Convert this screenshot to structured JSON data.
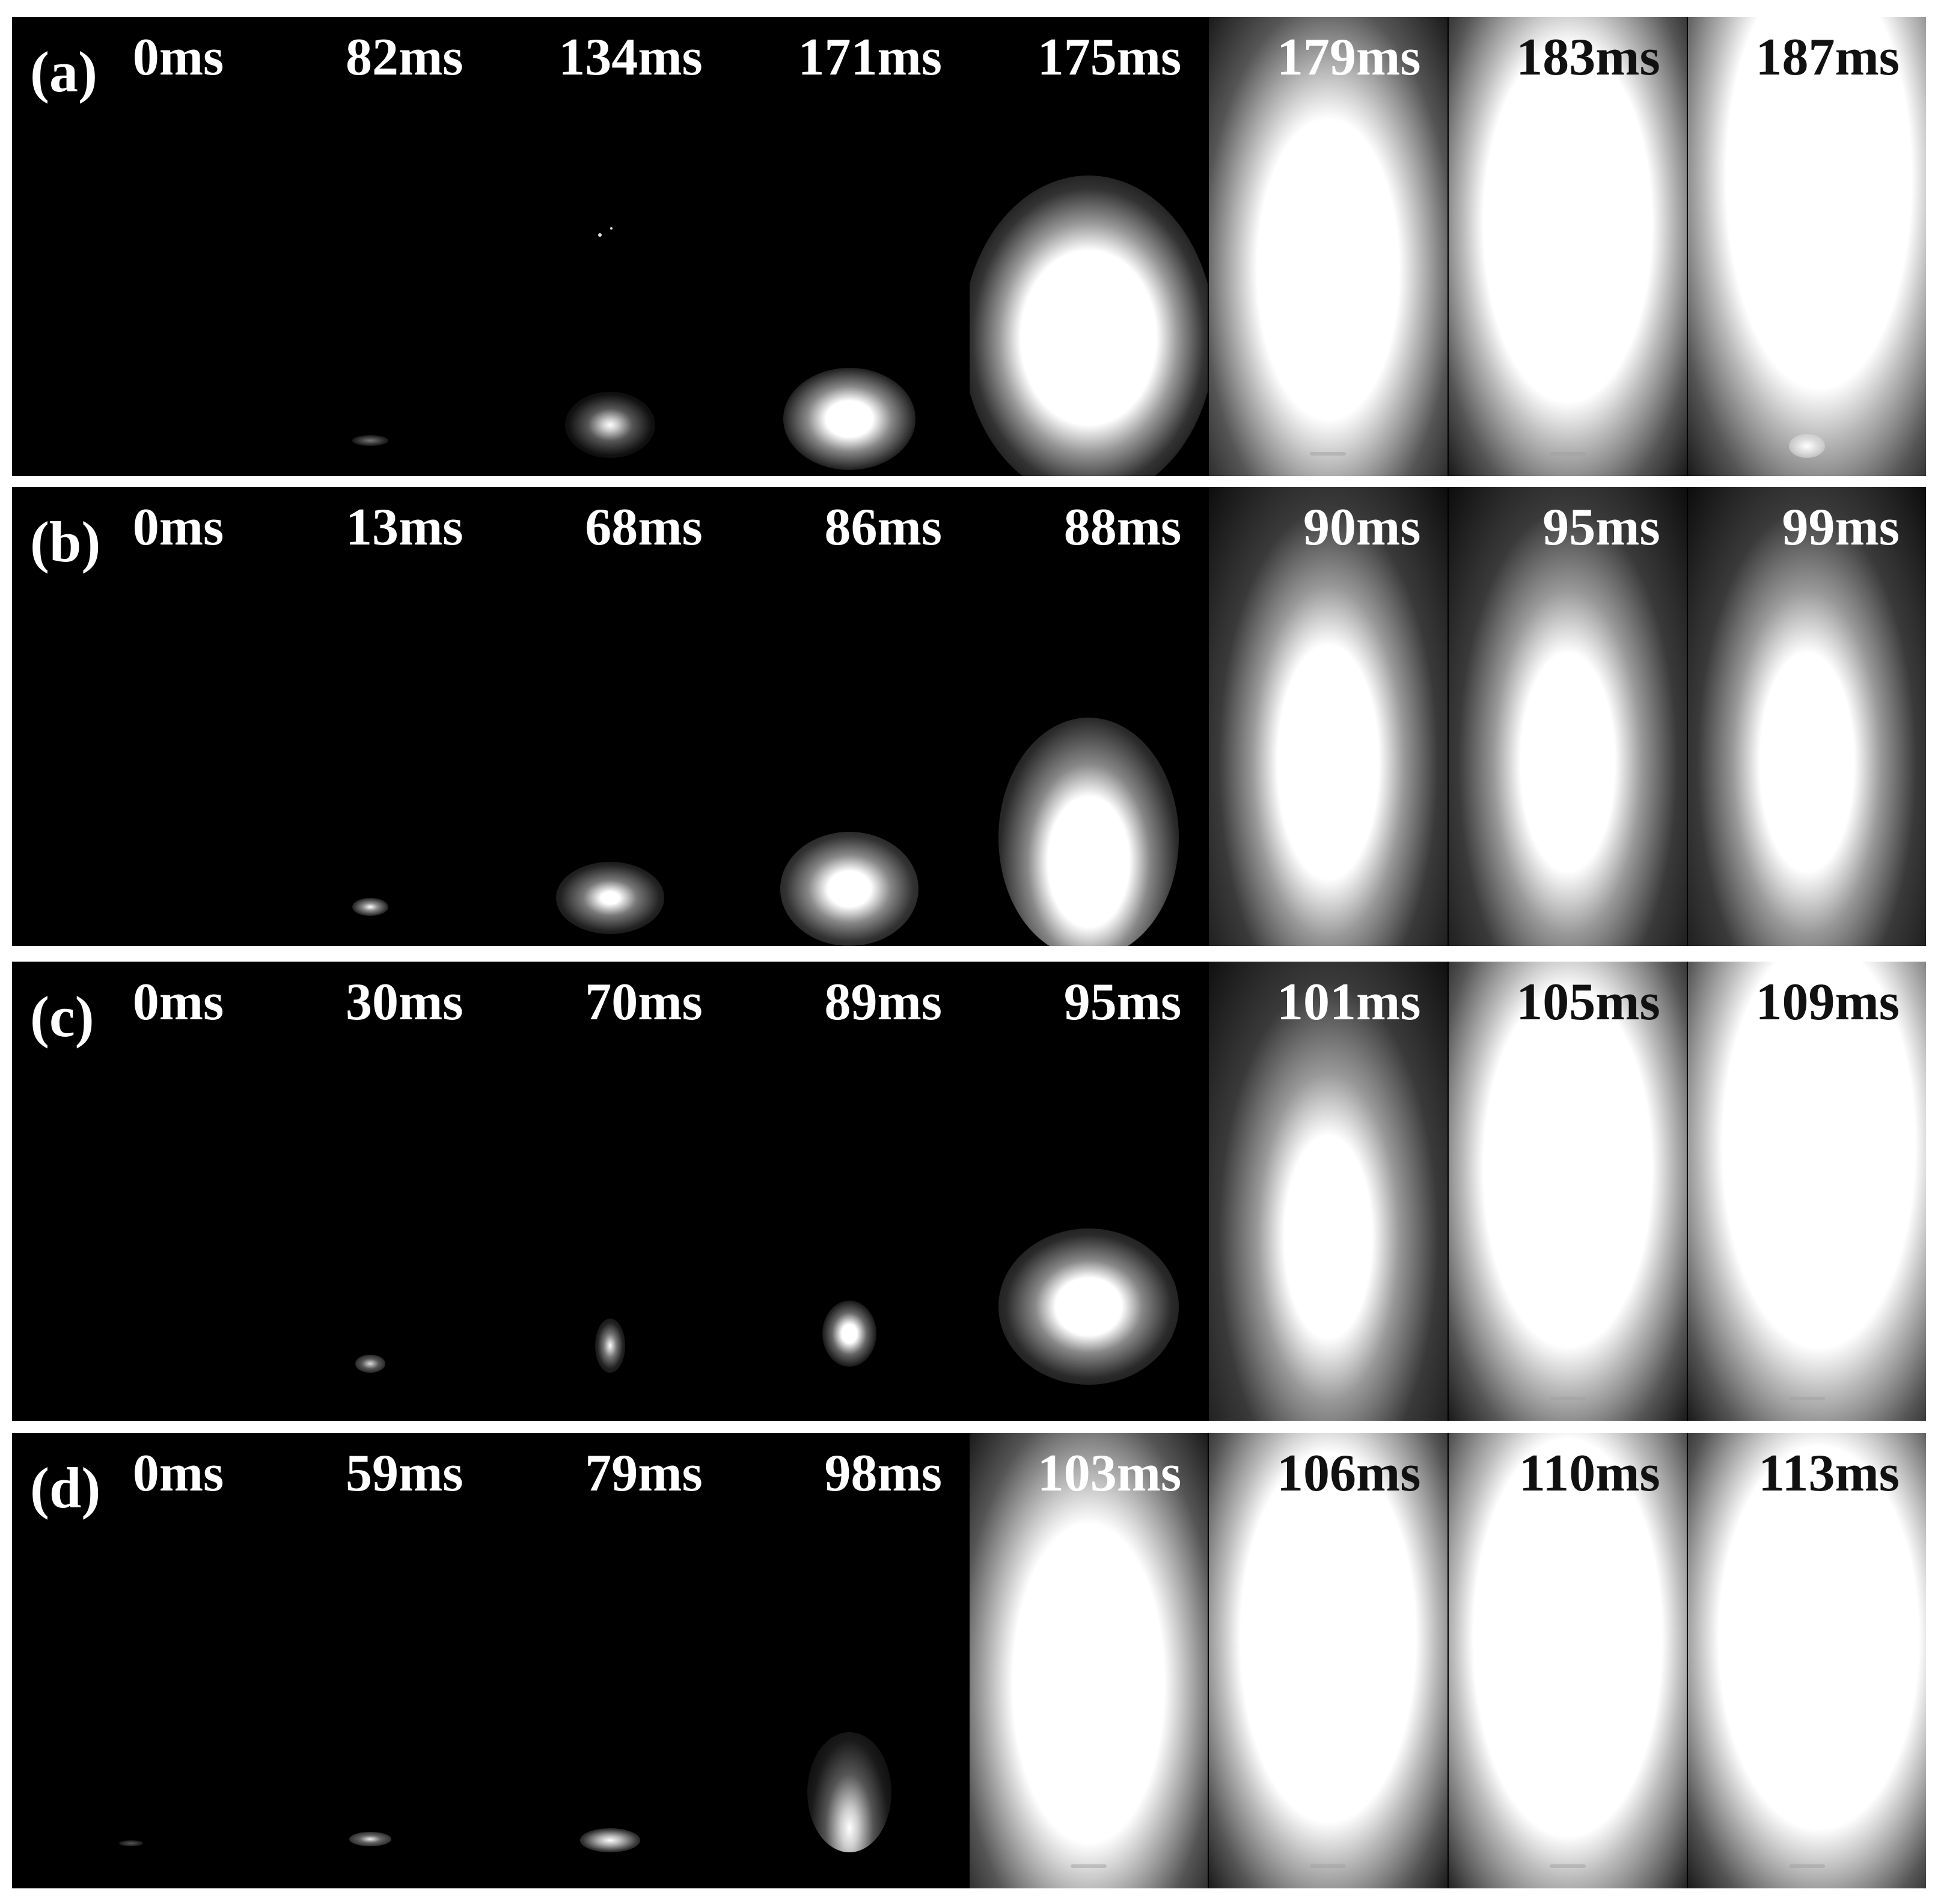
{
  "rows": [
    {
      "label": "(a)",
      "times": [
        "0ms",
        "82ms",
        "134ms",
        "171ms",
        "175ms",
        "179ms",
        "183ms",
        "187ms"
      ]
    },
    {
      "label": "(b)",
      "times": [
        "0ms",
        "13ms",
        "68ms",
        "86ms",
        "88ms",
        "90ms",
        "95ms",
        "99ms"
      ]
    },
    {
      "label": "(c)",
      "times": [
        "0ms",
        "30ms",
        "70ms",
        "89ms",
        "95ms",
        "101ms",
        "105ms",
        "109ms"
      ]
    },
    {
      "label": "(d)",
      "times": [
        "0ms",
        "59ms",
        "79ms",
        "98ms",
        "103ms",
        "106ms",
        "110ms",
        "113ms"
      ]
    }
  ],
  "colors": {
    "background": "#000000",
    "flame": "#ffffff",
    "separator": "#ffffff"
  }
}
